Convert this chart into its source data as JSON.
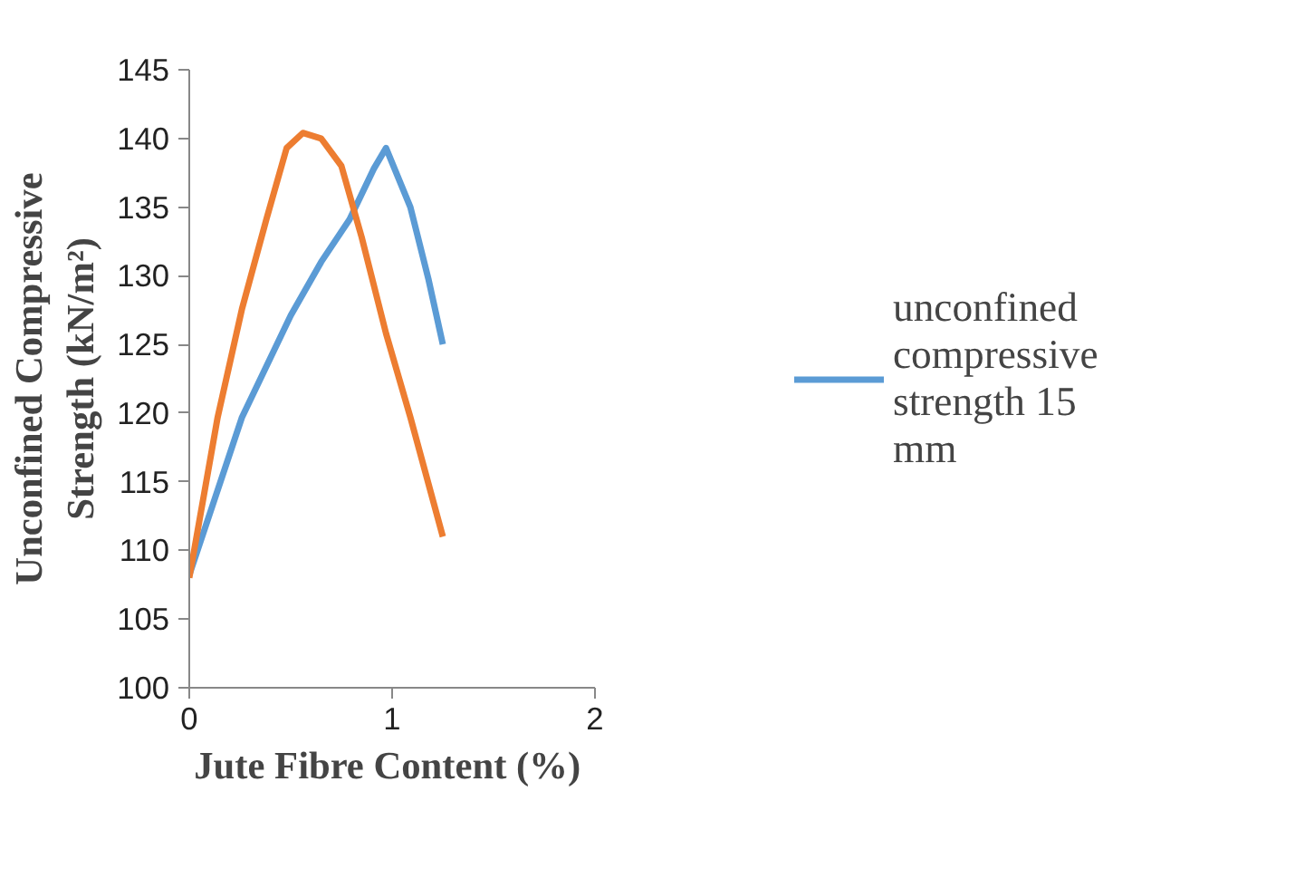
{
  "chart_data": {
    "type": "line",
    "xlabel": "Jute Fibre Content  (%)",
    "ylabel": "Unconfined Compressive Strength (kN/m²)",
    "xlim": [
      0,
      2
    ],
    "xticks": [
      0,
      1,
      2
    ],
    "ylim": [
      100,
      145
    ],
    "yticks": [
      100,
      105,
      110,
      115,
      120,
      125,
      130,
      135,
      140,
      145
    ],
    "grid": false,
    "legend": "right",
    "marker": "none",
    "line_style": "solid",
    "series": [
      {
        "name": "unconfined compressive strength 15 mm",
        "color": "#5b9bd5",
        "x": [
          0,
          0.26,
          0.5,
          0.65,
          0.79,
          0.91,
          0.97,
          1.09,
          1.18,
          1.25
        ],
        "values": [
          108.2,
          119.7,
          127.1,
          131,
          134.1,
          137.8,
          139.3,
          135,
          129.7,
          125
        ]
      },
      {
        "color": "#ed7d31",
        "x": [
          0,
          0.14,
          0.26,
          0.38,
          0.48,
          0.56,
          0.65,
          0.75,
          0.85,
          0.97,
          1.09,
          1.25
        ],
        "values": [
          108,
          119.7,
          127.6,
          134.1,
          139.3,
          140.4,
          140,
          138,
          132.8,
          125.8,
          119.7,
          111
        ]
      }
    ]
  }
}
